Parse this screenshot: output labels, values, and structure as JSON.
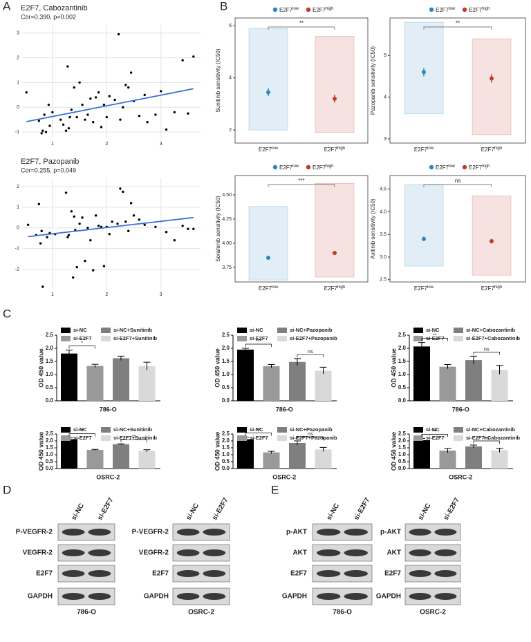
{
  "panel_labels": [
    "A",
    "B",
    "C",
    "D",
    "E"
  ],
  "chart_data": [
    {
      "type": "scatter",
      "title": "E2F7, Cabozantinib",
      "subtitle": "Cor=0.390, p=0.002",
      "grid": true,
      "color": "#000000",
      "xlim": [
        0.44,
        3.73
      ],
      "xticks": [
        1,
        2,
        3
      ],
      "ylim": [
        -1.25,
        3.33
      ],
      "yticks": [
        -1,
        0,
        1,
        2,
        3
      ],
      "x": [
        0.52,
        0.75,
        0.8,
        0.82,
        0.85,
        0.88,
        0.93,
        0.95,
        1.0,
        1.15,
        1.2,
        1.25,
        1.28,
        1.3,
        1.32,
        1.35,
        1.4,
        1.45,
        1.5,
        1.55,
        1.6,
        1.65,
        1.7,
        1.75,
        1.8,
        1.85,
        1.9,
        1.95,
        2.0,
        2.05,
        2.15,
        2.22,
        2.25,
        2.3,
        2.35,
        2.4,
        2.45,
        2.5,
        2.6,
        2.7,
        2.75,
        2.9,
        3.0,
        3.1,
        3.25,
        3.4,
        3.5,
        3.6
      ],
      "y": [
        0.6,
        -0.55,
        -1.05,
        -0.95,
        -0.3,
        -1.0,
        0.1,
        -0.75,
        -0.2,
        -0.5,
        -0.7,
        -0.95,
        1.65,
        -0.85,
        -0.4,
        -0.1,
        0.8,
        -0.4,
        1.0,
        0.1,
        -0.5,
        -0.3,
        0.35,
        -0.6,
        0.4,
        0.6,
        -0.8,
        0.1,
        -0.4,
        0.45,
        0.3,
        2.95,
        -0.5,
        0.0,
        0.9,
        0.8,
        1.4,
        0.25,
        -0.35,
        0.5,
        -0.6,
        -0.3,
        0.65,
        -0.9,
        -0.2,
        1.9,
        -0.25,
        2.05
      ],
      "trend": {
        "x": [
          0.52,
          3.6
        ],
        "y": [
          -0.58,
          0.75
        ],
        "color": "#3b6fd8"
      }
    },
    {
      "type": "scatter",
      "title": "E2F7, Pazopanib",
      "subtitle": "Cor=0.255, p=0.049",
      "grid": true,
      "color": "#000000",
      "xlim": [
        0.44,
        3.73
      ],
      "xticks": [
        1,
        2,
        3
      ],
      "ylim": [
        -2.95,
        2.4
      ],
      "yticks": [
        -2,
        -1,
        0,
        1,
        2
      ],
      "x": [
        0.55,
        0.7,
        0.75,
        0.78,
        0.8,
        0.82,
        0.9,
        0.95,
        1.05,
        1.25,
        1.28,
        1.3,
        1.35,
        1.38,
        1.4,
        1.42,
        1.45,
        1.5,
        1.55,
        1.6,
        1.65,
        1.7,
        1.75,
        1.8,
        1.85,
        1.9,
        1.95,
        2.0,
        2.05,
        2.1,
        2.2,
        2.25,
        2.3,
        2.35,
        2.4,
        2.45,
        2.5,
        2.6,
        2.7,
        2.9,
        3.1,
        3.25,
        3.4,
        3.5,
        3.6
      ],
      "y": [
        0.15,
        -0.35,
        1.15,
        -0.75,
        -0.15,
        -2.85,
        -0.45,
        -0.25,
        -0.3,
        1.7,
        -0.45,
        -0.35,
        0.8,
        -2.4,
        0.55,
        -0.1,
        -1.9,
        0.2,
        0.5,
        -1.6,
        0.0,
        -0.6,
        -2.05,
        0.6,
        0.1,
        0.05,
        -1.85,
        0.05,
        -0.3,
        0.3,
        0.2,
        1.9,
        1.75,
        0.3,
        -0.15,
        1.2,
        0.6,
        0.4,
        0.15,
        0.05,
        -0.2,
        -0.6,
        0.1,
        -0.05,
        -0.05
      ],
      "trend": {
        "x": [
          0.55,
          3.6
        ],
        "y": [
          -0.42,
          0.5
        ],
        "color": "#3b6fd8"
      }
    },
    {
      "type": "strip",
      "ylabel": "Sunitinib sensitivity (IC50)",
      "group_label": "E2F7",
      "significance": "**",
      "ylim": [
        1.5,
        6.3
      ],
      "yticks": [
        2,
        4,
        6
      ],
      "series": [
        {
          "name": "low",
          "color": "#2e86c1",
          "mean": 3.45,
          "error": 0.15,
          "min": 2.0,
          "max": 5.9
        },
        {
          "name": "high",
          "color": "#c0392b",
          "mean": 3.2,
          "error": 0.15,
          "min": 1.9,
          "max": 5.6
        }
      ]
    },
    {
      "type": "strip",
      "ylabel": "Pazopanib sensitivity (IC50)",
      "group_label": "E2F7",
      "significance": "**",
      "ylim": [
        2.9,
        5.9
      ],
      "yticks": [
        3,
        4,
        5
      ],
      "series": [
        {
          "name": "low",
          "color": "#2e86c1",
          "mean": 4.6,
          "error": 0.1,
          "min": 3.6,
          "max": 5.8
        },
        {
          "name": "high",
          "color": "#c0392b",
          "mean": 4.45,
          "error": 0.1,
          "min": 3.1,
          "max": 5.4
        }
      ]
    },
    {
      "type": "strip",
      "ylabel": "Sorafenib sensitivity (IC50)",
      "group_label": "E2F7",
      "significance": "***",
      "ylim": [
        3.6,
        4.7
      ],
      "yticks": [
        3.75,
        {
          "value": 4.0,
          "label": "4.00"
        },
        4.25,
        {
          "value": 4.5,
          "label": "4.50"
        }
      ],
      "series": [
        {
          "name": "low",
          "color": "#2e86c1",
          "mean": 3.85,
          "error": 0.02,
          "min": 3.62,
          "max": 4.38
        },
        {
          "name": "high",
          "color": "#c0392b",
          "mean": 3.9,
          "error": 0.02,
          "min": 3.65,
          "max": 4.62
        }
      ]
    },
    {
      "type": "strip",
      "ylabel": "Axitinib sensitivity (IC50)",
      "group_label": "E2F7",
      "significance": "ns",
      "ylim": [
        2.45,
        4.8
      ],
      "yticks": [
        2.5,
        {
          "value": 3.0,
          "label": "3.0"
        },
        3.5,
        {
          "value": 4.0,
          "label": "4.0"
        },
        4.5
      ],
      "series": [
        {
          "name": "low",
          "color": "#2e86c1",
          "mean": 3.4,
          "error": 0.05,
          "min": 2.8,
          "max": 4.6
        },
        {
          "name": "high",
          "color": "#c0392b",
          "mean": 3.35,
          "error": 0.05,
          "min": 2.6,
          "max": 4.35
        }
      ]
    },
    {
      "type": "bar",
      "ylabel": "OD 450 value",
      "xlabel": "786-O",
      "ylim": [
        0,
        2.5
      ],
      "yticks": [
        {
          "value": 0,
          "label": "0.0"
        },
        0.5,
        {
          "value": 1,
          "label": "1.0"
        },
        1.5,
        {
          "value": 2,
          "label": "2.0"
        },
        2.5
      ],
      "series": [
        {
          "name": "si-NC",
          "color": "#000000",
          "values": [
            1.8
          ],
          "errors": [
            0.13
          ]
        },
        {
          "name": "si-E2F7",
          "color": "#999999",
          "values": [
            1.33
          ],
          "errors": [
            0.06
          ]
        },
        {
          "name": "si-NC+Sunitinib",
          "color": "#7f7f7f",
          "values": [
            1.62
          ],
          "errors": [
            0.08
          ]
        },
        {
          "name": "si-E2F7+Sunitinib",
          "color": "#d9d9d9",
          "values": [
            1.32
          ],
          "errors": [
            0.15
          ]
        }
      ],
      "significance": [
        {
          "pair": [
            0,
            1
          ],
          "label": "*"
        }
      ]
    },
    {
      "type": "bar",
      "ylabel": "OD 450 value",
      "xlabel": "786-O",
      "ylim": [
        0,
        2.5
      ],
      "yticks": [
        {
          "value": 0,
          "label": "0.0"
        },
        0.5,
        {
          "value": 1,
          "label": "1.0"
        },
        1.5,
        {
          "value": 2,
          "label": "2.0"
        },
        2.5
      ],
      "series": [
        {
          "name": "si-NC",
          "color": "#000000",
          "values": [
            1.95
          ],
          "errors": [
            0.05
          ]
        },
        {
          "name": "si-E2F7",
          "color": "#999999",
          "values": [
            1.32
          ],
          "errors": [
            0.06
          ]
        },
        {
          "name": "si-NC+Pazopanib",
          "color": "#7f7f7f",
          "values": [
            1.48
          ],
          "errors": [
            0.13
          ]
        },
        {
          "name": "si-E2F7+Pazopanib",
          "color": "#d9d9d9",
          "values": [
            1.15
          ],
          "errors": [
            0.13
          ]
        }
      ],
      "significance": [
        {
          "pair": [
            0,
            1
          ],
          "label": "***"
        },
        {
          "pair": [
            2,
            3
          ],
          "label": "ns"
        }
      ]
    },
    {
      "type": "bar",
      "ylabel": "OD 450 value",
      "xlabel": "786-O",
      "ylim": [
        0,
        2.5
      ],
      "yticks": [
        {
          "value": 0,
          "label": "0.0"
        },
        0.5,
        {
          "value": 1,
          "label": "1.0"
        },
        1.5,
        {
          "value": 2,
          "label": "2.0"
        },
        2.5
      ],
      "series": [
        {
          "name": "si-NC",
          "color": "#000000",
          "values": [
            2.07
          ],
          "errors": [
            0.15
          ]
        },
        {
          "name": "si-E2F7",
          "color": "#999999",
          "values": [
            1.3
          ],
          "errors": [
            0.08
          ]
        },
        {
          "name": "si-NC+Cabozantinib",
          "color": "#7f7f7f",
          "values": [
            1.55
          ],
          "errors": [
            0.15
          ]
        },
        {
          "name": "si-E2F7+Cabozantinib",
          "color": "#d9d9d9",
          "values": [
            1.18
          ],
          "errors": [
            0.17
          ]
        }
      ],
      "significance": [
        {
          "pair": [
            0,
            1
          ],
          "label": "**"
        },
        {
          "pair": [
            2,
            3
          ],
          "label": "ns"
        }
      ]
    },
    {
      "type": "bar",
      "ylabel": "OD 450 value",
      "xlabel": "OSRC-2",
      "ylim": [
        0,
        2.5
      ],
      "yticks": [
        {
          "value": 0,
          "label": "0.0"
        },
        0.5,
        {
          "value": 1,
          "label": "1.0"
        },
        1.5,
        {
          "value": 2,
          "label": "2.0"
        },
        2.5
      ],
      "series": [
        {
          "name": "si-NC",
          "color": "#000000",
          "values": [
            2.12
          ],
          "errors": [
            0.1
          ]
        },
        {
          "name": "si-E2F7",
          "color": "#999999",
          "values": [
            1.35
          ],
          "errors": [
            0.04
          ]
        },
        {
          "name": "si-NC+Sunitinib",
          "color": "#7f7f7f",
          "values": [
            1.76
          ],
          "errors": [
            0.03
          ]
        },
        {
          "name": "si-E2F7+Sunitinib",
          "color": "#d9d9d9",
          "values": [
            1.28
          ],
          "errors": [
            0.08
          ]
        }
      ],
      "significance": [
        {
          "pair": [
            0,
            1
          ],
          "label": "**"
        },
        {
          "pair": [
            2,
            3
          ],
          "label": "**"
        }
      ]
    },
    {
      "type": "bar",
      "ylabel": "OD 450 value",
      "xlabel": "OSRC-2",
      "ylim": [
        0,
        2.5
      ],
      "yticks": [
        {
          "value": 0,
          "label": "0.0"
        },
        0.5,
        {
          "value": 1,
          "label": "1.0"
        },
        1.5,
        {
          "value": 2,
          "label": "2.0"
        },
        2.5
      ],
      "series": [
        {
          "name": "si-NC",
          "color": "#000000",
          "values": [
            2.12
          ],
          "errors": [
            0.15
          ]
        },
        {
          "name": "si-E2F7",
          "color": "#999999",
          "values": [
            1.17
          ],
          "errors": [
            0.08
          ]
        },
        {
          "name": "si-NC+Pazopanib",
          "color": "#7f7f7f",
          "values": [
            1.85
          ],
          "errors": [
            0.15
          ]
        },
        {
          "name": "si-E2F7+Pazopanib",
          "color": "#d9d9d9",
          "values": [
            1.38
          ],
          "errors": [
            0.15
          ]
        }
      ],
      "significance": [
        {
          "pair": [
            0,
            1
          ],
          "label": "**"
        },
        {
          "pair": [
            2,
            3
          ],
          "label": "ns"
        }
      ]
    },
    {
      "type": "bar",
      "ylabel": "OD 450 value",
      "xlabel": "OSRC-2",
      "ylim": [
        0,
        2.5
      ],
      "yticks": [
        {
          "value": 0,
          "label": "0.0"
        },
        0.5,
        {
          "value": 1,
          "label": "1.0"
        },
        1.5,
        {
          "value": 2,
          "label": "2.0"
        },
        2.5
      ],
      "series": [
        {
          "name": "si-NC",
          "color": "#000000",
          "values": [
            2.05
          ],
          "errors": [
            0.13
          ]
        },
        {
          "name": "si-E2F7",
          "color": "#999999",
          "values": [
            1.3
          ],
          "errors": [
            0.15
          ]
        },
        {
          "name": "si-NC+Cabozantinib",
          "color": "#7f7f7f",
          "values": [
            1.6
          ],
          "errors": [
            0.1
          ]
        },
        {
          "name": "si-E2F7+Cabozantinib",
          "color": "#d9d9d9",
          "values": [
            1.32
          ],
          "errors": [
            0.15
          ]
        }
      ],
      "significance": [
        {
          "pair": [
            0,
            1
          ],
          "label": "**"
        },
        {
          "pair": [
            2,
            3
          ],
          "label": "ns"
        }
      ]
    }
  ],
  "western_blots": [
    {
      "columns": [
        "si-NC",
        "si-E2F7"
      ],
      "rows": [
        "P-VEGFR-2",
        "VEGFR-2",
        "E2F7",
        "GAPDH"
      ],
      "cell_line": "786-O"
    },
    {
      "columns": [
        "si-NC",
        "si-E2F7"
      ],
      "rows": [
        "P-VEGFR-2",
        "VEGFR-2",
        "E2F7",
        "GAPDH"
      ],
      "cell_line": "OSRC-2"
    },
    {
      "columns": [
        "si-NC",
        "si-E2F7"
      ],
      "rows": [
        "p-AKT",
        "AKT",
        "E2F7",
        "GAPDH"
      ],
      "cell_line": "786-O"
    },
    {
      "columns": [
        "si-NC",
        "si-E2F7"
      ],
      "rows": [
        "p-AKT",
        "AKT",
        "E2F7",
        "GAPDH"
      ],
      "cell_line": "OSRC-2"
    }
  ]
}
